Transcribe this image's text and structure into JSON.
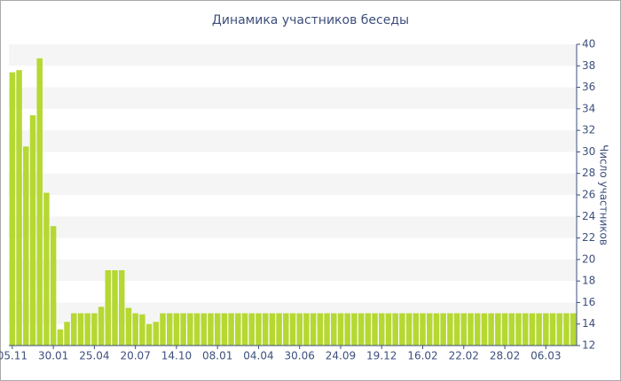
{
  "chart_data": {
    "type": "bar",
    "title": "Динамика участников беседы",
    "y_label": "Число участников",
    "categories": [
      "05.11",
      null,
      null,
      null,
      null,
      null,
      "30.01",
      null,
      null,
      null,
      null,
      null,
      "25.04",
      null,
      null,
      null,
      null,
      null,
      "20.07",
      null,
      null,
      null,
      null,
      null,
      "14.10",
      null,
      null,
      null,
      null,
      null,
      "08.01",
      null,
      null,
      null,
      null,
      null,
      "04.04",
      null,
      null,
      null,
      null,
      null,
      "30.06",
      null,
      null,
      null,
      null,
      null,
      "24.09",
      null,
      null,
      null,
      null,
      null,
      "19.12",
      null,
      null,
      null,
      null,
      null,
      "16.02",
      null,
      null,
      null,
      null,
      null,
      "22.02",
      null,
      null,
      null,
      null,
      null,
      "28.02",
      null,
      null,
      null,
      null,
      null,
      "06.03",
      null,
      null,
      null,
      null
    ],
    "values": [
      37.4,
      37.6,
      30.5,
      33.4,
      38.7,
      26.2,
      23.1,
      13.5,
      14.2,
      15,
      15,
      15,
      15,
      15.6,
      19,
      19,
      19,
      15.5,
      15,
      14.9,
      14,
      14.2,
      15,
      15,
      15,
      15,
      15,
      15,
      15,
      15,
      15,
      15,
      15,
      15,
      15,
      15,
      15,
      15,
      15,
      15,
      15,
      15,
      15,
      15,
      15,
      15,
      15,
      15,
      15,
      15,
      15,
      15,
      15,
      15,
      15,
      15,
      15,
      15,
      15,
      15,
      15,
      15,
      15,
      15,
      15,
      15,
      15,
      15,
      15,
      15,
      15,
      15,
      15,
      15,
      15,
      15,
      15,
      15,
      15,
      15,
      15,
      15,
      15
    ],
    "color": "#b5d832",
    "ylim": [
      12,
      40
    ],
    "yticks": [
      12,
      14,
      16,
      18,
      20,
      22,
      24,
      26,
      28,
      30,
      32,
      34,
      36,
      38,
      40
    ],
    "grid": true
  }
}
